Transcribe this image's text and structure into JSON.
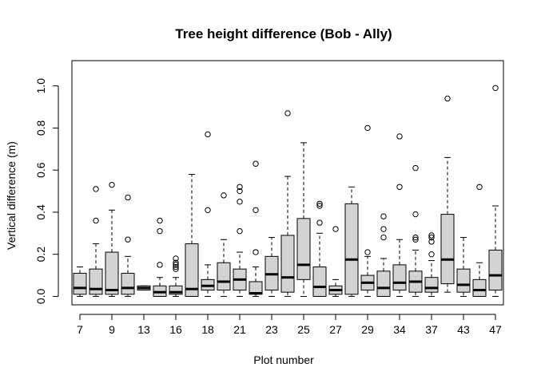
{
  "chart_data": {
    "type": "boxplot",
    "title": "Tree height difference (Bob - Ally)",
    "xlabel": "Plot number",
    "ylabel": "Vertical difference (m)",
    "ylim": [
      -0.04,
      1.12
    ],
    "yticks": [
      0.0,
      0.2,
      0.4,
      0.6,
      0.8,
      1.0
    ],
    "ytick_labels": [
      "0.0",
      "0.2",
      "0.4",
      "0.6",
      "0.8",
      "1.0"
    ],
    "xtick_labels": [
      "7",
      "9",
      "13",
      "16",
      "18",
      "21",
      "23",
      "25",
      "27",
      "29",
      "34",
      "37",
      "43",
      "47"
    ],
    "xtick_positions": [
      1,
      3,
      5,
      7,
      9,
      11,
      13,
      15,
      17,
      19,
      21,
      23,
      25,
      27
    ],
    "grid": false,
    "legend": "none",
    "box_fill": "#d3d3d3",
    "boxes": [
      {
        "pos": 1,
        "label": "7",
        "whisker_low": 0.0,
        "q1": 0.01,
        "median": 0.04,
        "q3": 0.11,
        "whisker_high": 0.14,
        "outliers": []
      },
      {
        "pos": 2,
        "label": "",
        "whisker_low": 0.0,
        "q1": 0.01,
        "median": 0.035,
        "q3": 0.13,
        "whisker_high": 0.25,
        "outliers": [
          0.36,
          0.51
        ]
      },
      {
        "pos": 3,
        "label": "9",
        "whisker_low": 0.0,
        "q1": 0.01,
        "median": 0.03,
        "q3": 0.21,
        "whisker_high": 0.41,
        "outliers": [
          0.53
        ]
      },
      {
        "pos": 4,
        "label": "",
        "whisker_low": 0.0,
        "q1": 0.01,
        "median": 0.04,
        "q3": 0.11,
        "whisker_high": 0.19,
        "outliers": [
          0.27,
          0.47
        ]
      },
      {
        "pos": 5,
        "label": "13",
        "whisker_low": 0.03,
        "q1": 0.03,
        "median": 0.04,
        "q3": 0.05,
        "whisker_high": 0.05,
        "outliers": []
      },
      {
        "pos": 6,
        "label": "",
        "whisker_low": 0.0,
        "q1": 0.0,
        "median": 0.02,
        "q3": 0.05,
        "whisker_high": 0.09,
        "outliers": [
          0.15,
          0.31,
          0.36
        ]
      },
      {
        "pos": 7,
        "label": "16",
        "whisker_low": 0.0,
        "q1": 0.01,
        "median": 0.02,
        "q3": 0.05,
        "whisker_high": 0.09,
        "outliers": [
          0.13,
          0.14,
          0.15,
          0.16,
          0.18
        ]
      },
      {
        "pos": 8,
        "label": "",
        "whisker_low": 0.0,
        "q1": 0.0,
        "median": 0.035,
        "q3": 0.25,
        "whisker_high": 0.58,
        "outliers": []
      },
      {
        "pos": 9,
        "label": "18",
        "whisker_low": 0.0,
        "q1": 0.03,
        "median": 0.05,
        "q3": 0.08,
        "whisker_high": 0.15,
        "outliers": [
          0.41,
          0.77
        ]
      },
      {
        "pos": 10,
        "label": "",
        "whisker_low": 0.0,
        "q1": 0.03,
        "median": 0.07,
        "q3": 0.16,
        "whisker_high": 0.27,
        "outliers": [
          0.48
        ]
      },
      {
        "pos": 11,
        "label": "21",
        "whisker_low": 0.0,
        "q1": 0.03,
        "median": 0.08,
        "q3": 0.13,
        "whisker_high": 0.21,
        "outliers": [
          0.31,
          0.45,
          0.5,
          0.52
        ]
      },
      {
        "pos": 12,
        "label": "",
        "whisker_low": 0.0,
        "q1": 0.01,
        "median": 0.015,
        "q3": 0.07,
        "whisker_high": 0.14,
        "outliers": [
          0.21,
          0.41,
          0.63
        ]
      },
      {
        "pos": 13,
        "label": "23",
        "whisker_low": 0.0,
        "q1": 0.03,
        "median": 0.105,
        "q3": 0.19,
        "whisker_high": 0.28,
        "outliers": []
      },
      {
        "pos": 14,
        "label": "",
        "whisker_low": 0.0,
        "q1": 0.02,
        "median": 0.09,
        "q3": 0.29,
        "whisker_high": 0.57,
        "outliers": [
          0.87
        ]
      },
      {
        "pos": 15,
        "label": "25",
        "whisker_low": 0.0,
        "q1": 0.08,
        "median": 0.15,
        "q3": 0.37,
        "whisker_high": 0.73,
        "outliers": []
      },
      {
        "pos": 16,
        "label": "",
        "whisker_low": 0.0,
        "q1": 0.0,
        "median": 0.045,
        "q3": 0.14,
        "whisker_high": 0.3,
        "outliers": [
          0.35,
          0.43,
          0.44
        ]
      },
      {
        "pos": 17,
        "label": "27",
        "whisker_low": 0.0,
        "q1": 0.01,
        "median": 0.03,
        "q3": 0.05,
        "whisker_high": 0.08,
        "outliers": [
          0.32
        ]
      },
      {
        "pos": 18,
        "label": "",
        "whisker_low": 0.0,
        "q1": 0.01,
        "median": 0.175,
        "q3": 0.44,
        "whisker_high": 0.52,
        "outliers": []
      },
      {
        "pos": 19,
        "label": "29",
        "whisker_low": 0.0,
        "q1": 0.03,
        "median": 0.065,
        "q3": 0.1,
        "whisker_high": 0.19,
        "outliers": [
          0.21,
          0.8
        ]
      },
      {
        "pos": 20,
        "label": "",
        "whisker_low": 0.0,
        "q1": 0.0,
        "median": 0.04,
        "q3": 0.12,
        "whisker_high": 0.18,
        "outliers": [
          0.28,
          0.32,
          0.38
        ]
      },
      {
        "pos": 21,
        "label": "34",
        "whisker_low": 0.0,
        "q1": 0.03,
        "median": 0.065,
        "q3": 0.15,
        "whisker_high": 0.27,
        "outliers": [
          0.52,
          0.76
        ]
      },
      {
        "pos": 22,
        "label": "",
        "whisker_low": 0.0,
        "q1": 0.02,
        "median": 0.07,
        "q3": 0.12,
        "whisker_high": 0.22,
        "outliers": [
          0.27,
          0.28,
          0.39,
          0.61
        ]
      },
      {
        "pos": 23,
        "label": "37",
        "whisker_low": 0.0,
        "q1": 0.02,
        "median": 0.04,
        "q3": 0.09,
        "whisker_high": 0.17,
        "outliers": [
          0.2,
          0.26,
          0.28,
          0.29
        ]
      },
      {
        "pos": 24,
        "label": "",
        "whisker_low": 0.02,
        "q1": 0.06,
        "median": 0.175,
        "q3": 0.39,
        "whisker_high": 0.66,
        "outliers": [
          0.94
        ]
      },
      {
        "pos": 25,
        "label": "43",
        "whisker_low": 0.0,
        "q1": 0.02,
        "median": 0.055,
        "q3": 0.13,
        "whisker_high": 0.28,
        "outliers": []
      },
      {
        "pos": 26,
        "label": "",
        "whisker_low": 0.0,
        "q1": 0.0,
        "median": 0.03,
        "q3": 0.08,
        "whisker_high": 0.16,
        "outliers": [
          0.52
        ]
      },
      {
        "pos": 27,
        "label": "47",
        "whisker_low": 0.0,
        "q1": 0.03,
        "median": 0.1,
        "q3": 0.22,
        "whisker_high": 0.43,
        "outliers": [
          0.99
        ]
      }
    ]
  }
}
